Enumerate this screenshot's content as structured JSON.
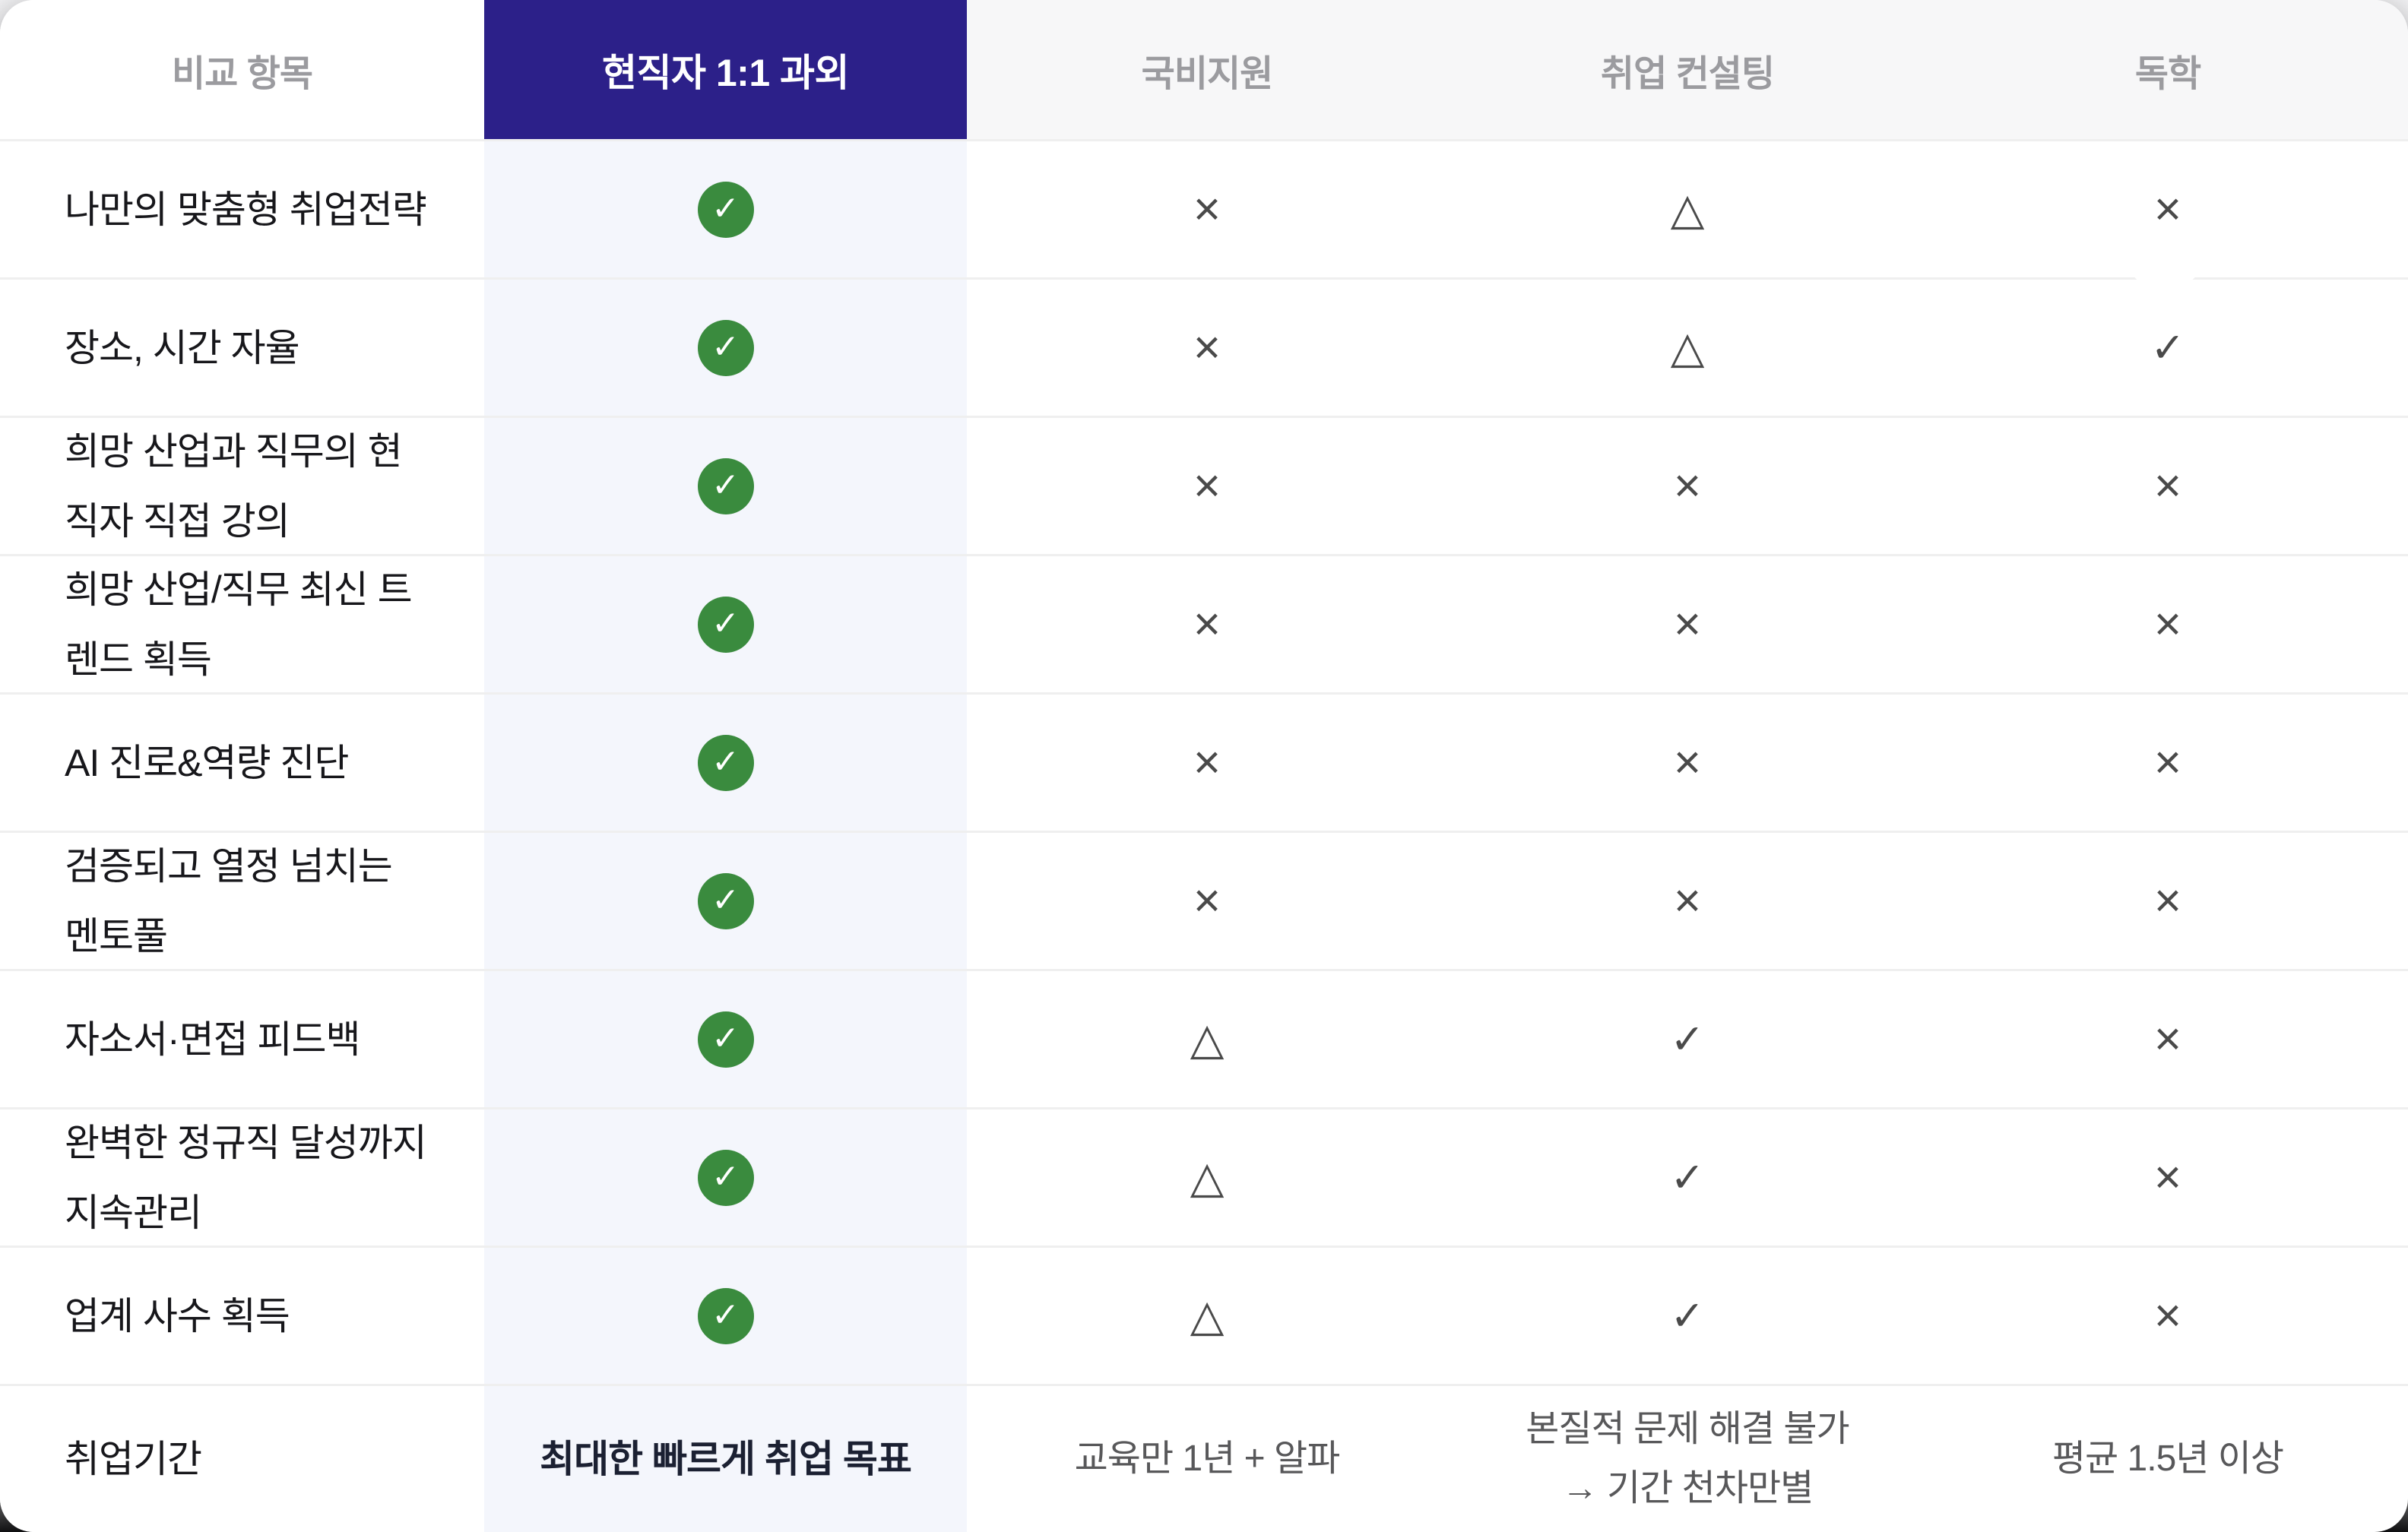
{
  "table": {
    "header": [
      "비교 항목",
      "현직자 1:1 과외",
      "국비지원",
      "취업 컨설팅",
      "독학"
    ],
    "rows": [
      {
        "label": "나만의 맞춤형 취업전략",
        "highlight": {
          "type": "badge"
        },
        "others": [
          {
            "type": "sym",
            "v": "no"
          },
          {
            "type": "sym",
            "v": "partial"
          },
          {
            "type": "sym",
            "v": "no"
          }
        ]
      },
      {
        "label": "장소, 시간 자율",
        "highlight": {
          "type": "badge"
        },
        "others": [
          {
            "type": "sym",
            "v": "no"
          },
          {
            "type": "sym",
            "v": "partial"
          },
          {
            "type": "sym",
            "v": "yes"
          }
        ]
      },
      {
        "label": "희망 산업과 직무의 현직자 직접 강의",
        "highlight": {
          "type": "badge"
        },
        "others": [
          {
            "type": "sym",
            "v": "no"
          },
          {
            "type": "sym",
            "v": "no"
          },
          {
            "type": "sym",
            "v": "no"
          }
        ]
      },
      {
        "label": "희망 산업/직무 최신 트렌드 획득",
        "highlight": {
          "type": "badge"
        },
        "others": [
          {
            "type": "sym",
            "v": "no"
          },
          {
            "type": "sym",
            "v": "no"
          },
          {
            "type": "sym",
            "v": "no"
          }
        ]
      },
      {
        "label": "AI 진로&역량 진단",
        "highlight": {
          "type": "badge"
        },
        "others": [
          {
            "type": "sym",
            "v": "no"
          },
          {
            "type": "sym",
            "v": "no"
          },
          {
            "type": "sym",
            "v": "no"
          }
        ]
      },
      {
        "label": "검증되고 열정 넘치는 멘토풀",
        "highlight": {
          "type": "badge"
        },
        "others": [
          {
            "type": "sym",
            "v": "no"
          },
          {
            "type": "sym",
            "v": "no"
          },
          {
            "type": "sym",
            "v": "no"
          }
        ]
      },
      {
        "label": "자소서·면접 피드백",
        "highlight": {
          "type": "badge"
        },
        "others": [
          {
            "type": "sym",
            "v": "partial"
          },
          {
            "type": "sym",
            "v": "yes"
          },
          {
            "type": "sym",
            "v": "no"
          }
        ]
      },
      {
        "label": "완벽한 정규직 달성까지 지속관리",
        "highlight": {
          "type": "badge"
        },
        "others": [
          {
            "type": "sym",
            "v": "partial"
          },
          {
            "type": "sym",
            "v": "yes"
          },
          {
            "type": "sym",
            "v": "no"
          }
        ]
      },
      {
        "label": "업계 사수 획득",
        "highlight": {
          "type": "badge"
        },
        "others": [
          {
            "type": "sym",
            "v": "partial"
          },
          {
            "type": "sym",
            "v": "yes"
          },
          {
            "type": "sym",
            "v": "no"
          }
        ]
      },
      {
        "label": "취업기간",
        "highlight": {
          "type": "text",
          "lines": [
            "최대한 빠르게 취업 목표"
          ]
        },
        "others": [
          {
            "type": "text",
            "lines": [
              "교육만 1년 + 알파"
            ]
          },
          {
            "type": "text",
            "lines": [
              "본질적 문제 해결 불가",
              "→ 기간 천차만별"
            ]
          },
          {
            "type": "text",
            "lines": [
              "평균 1.5년 이상"
            ]
          }
        ]
      }
    ]
  },
  "symbols": {
    "yes": "✓",
    "no": "×",
    "partial": "△",
    "badge_check": "✓"
  },
  "colors": {
    "accent_purple": "#2C2089",
    "highlight_column_bg": "#F4F6FC",
    "badge_green": "#3A8B3E",
    "symbol_gray": "#4A4A4A",
    "header_text_gray": "#9B9B9F",
    "label_text": "#17171B",
    "value_text_gray": "#58585A",
    "divider": "#EFEFEF"
  }
}
